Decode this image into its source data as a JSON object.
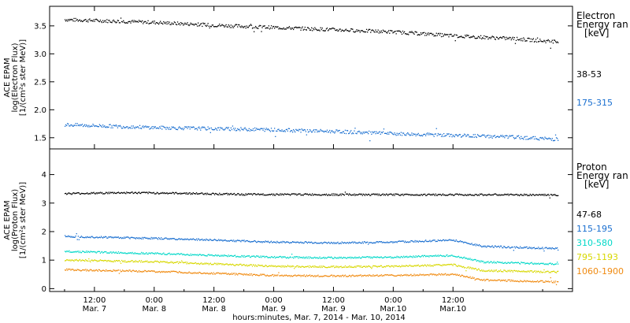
{
  "chart_data": [
    {
      "type": "scatter",
      "ylabel": [
        "ACE EPAM",
        "log(Electron Flux)",
        "[1/(cm²s ster MeV)]"
      ],
      "ylim": [
        1.3,
        3.85
      ],
      "yticks": [
        "1.5",
        "2.0",
        "2.5",
        "3.0",
        "3.5"
      ],
      "yticks_values": [
        1.5,
        2.0,
        2.5,
        3.0,
        3.5
      ],
      "legend_title": [
        "Electron",
        "Energy ran",
        "[keV]"
      ],
      "series": [
        {
          "name": "38-53",
          "color": "#000000",
          "x_hours": [
            -18,
            0,
            12,
            24,
            36,
            48,
            60,
            72,
            81
          ],
          "y": [
            3.62,
            3.57,
            3.52,
            3.48,
            3.44,
            3.4,
            3.33,
            3.28,
            3.22
          ]
        },
        {
          "name": "175-315",
          "color": "#1a6fd0",
          "x_hours": [
            -18,
            0,
            12,
            24,
            36,
            48,
            60,
            72,
            81
          ],
          "y": [
            1.74,
            1.69,
            1.67,
            1.65,
            1.62,
            1.58,
            1.55,
            1.52,
            1.48
          ]
        }
      ]
    },
    {
      "type": "scatter",
      "ylabel": [
        "ACE EPAM",
        "log(Proton Flux)",
        "[1/(cm²s ster MeV)]"
      ],
      "ylim": [
        -0.1,
        4.9
      ],
      "yticks": [
        "0",
        "1",
        "2",
        "3",
        "4"
      ],
      "yticks_values": [
        0,
        1,
        2,
        3,
        4
      ],
      "legend_title": [
        "Proton",
        "Energy ran",
        "[keV]"
      ],
      "series": [
        {
          "name": "47-68",
          "color": "#000000",
          "x_hours": [
            -18,
            -6,
            6,
            18,
            30,
            42,
            54,
            66,
            81
          ],
          "y": [
            3.35,
            3.38,
            3.36,
            3.32,
            3.32,
            3.31,
            3.31,
            3.31,
            3.3
          ]
        },
        {
          "name": "115-195",
          "color": "#1a6fd0",
          "x_hours": [
            -18,
            0,
            12,
            24,
            36,
            48,
            60,
            66,
            81
          ],
          "y": [
            1.85,
            1.78,
            1.72,
            1.65,
            1.62,
            1.65,
            1.72,
            1.5,
            1.42
          ]
        },
        {
          "name": "310-580",
          "color": "#00d8c8",
          "x_hours": [
            -18,
            0,
            12,
            24,
            36,
            48,
            60,
            66,
            81
          ],
          "y": [
            1.32,
            1.25,
            1.18,
            1.12,
            1.1,
            1.12,
            1.18,
            0.95,
            0.88
          ]
        },
        {
          "name": "795-1193",
          "color": "#d8d800",
          "x_hours": [
            -18,
            0,
            12,
            24,
            36,
            48,
            60,
            66,
            81
          ],
          "y": [
            1.02,
            0.96,
            0.88,
            0.8,
            0.78,
            0.8,
            0.85,
            0.65,
            0.6
          ]
        },
        {
          "name": "1060-1900",
          "color": "#f08a10",
          "x_hours": [
            -18,
            0,
            12,
            24,
            36,
            48,
            60,
            66,
            81
          ],
          "y": [
            0.68,
            0.62,
            0.55,
            0.48,
            0.46,
            0.48,
            0.52,
            0.32,
            0.25
          ]
        }
      ]
    }
  ],
  "x_axis": {
    "range_hours": [
      -21,
      84
    ],
    "ticks": [
      {
        "hours": -12,
        "time": "12:00",
        "date": "Mar. 7"
      },
      {
        "hours": 0,
        "time": "0:00",
        "date": "Mar. 8"
      },
      {
        "hours": 12,
        "time": "12:00",
        "date": "Mar. 8"
      },
      {
        "hours": 24,
        "time": "0:00",
        "date": "Mar. 9"
      },
      {
        "hours": 36,
        "time": "12:00",
        "date": "Mar. 9"
      },
      {
        "hours": 48,
        "time": "0:00",
        "date": "Mar.10"
      },
      {
        "hours": 60,
        "time": "12:00",
        "date": "Mar.10"
      }
    ],
    "label": "hours:minutes, Mar.  7, 2014 - Mar. 10, 2014"
  }
}
